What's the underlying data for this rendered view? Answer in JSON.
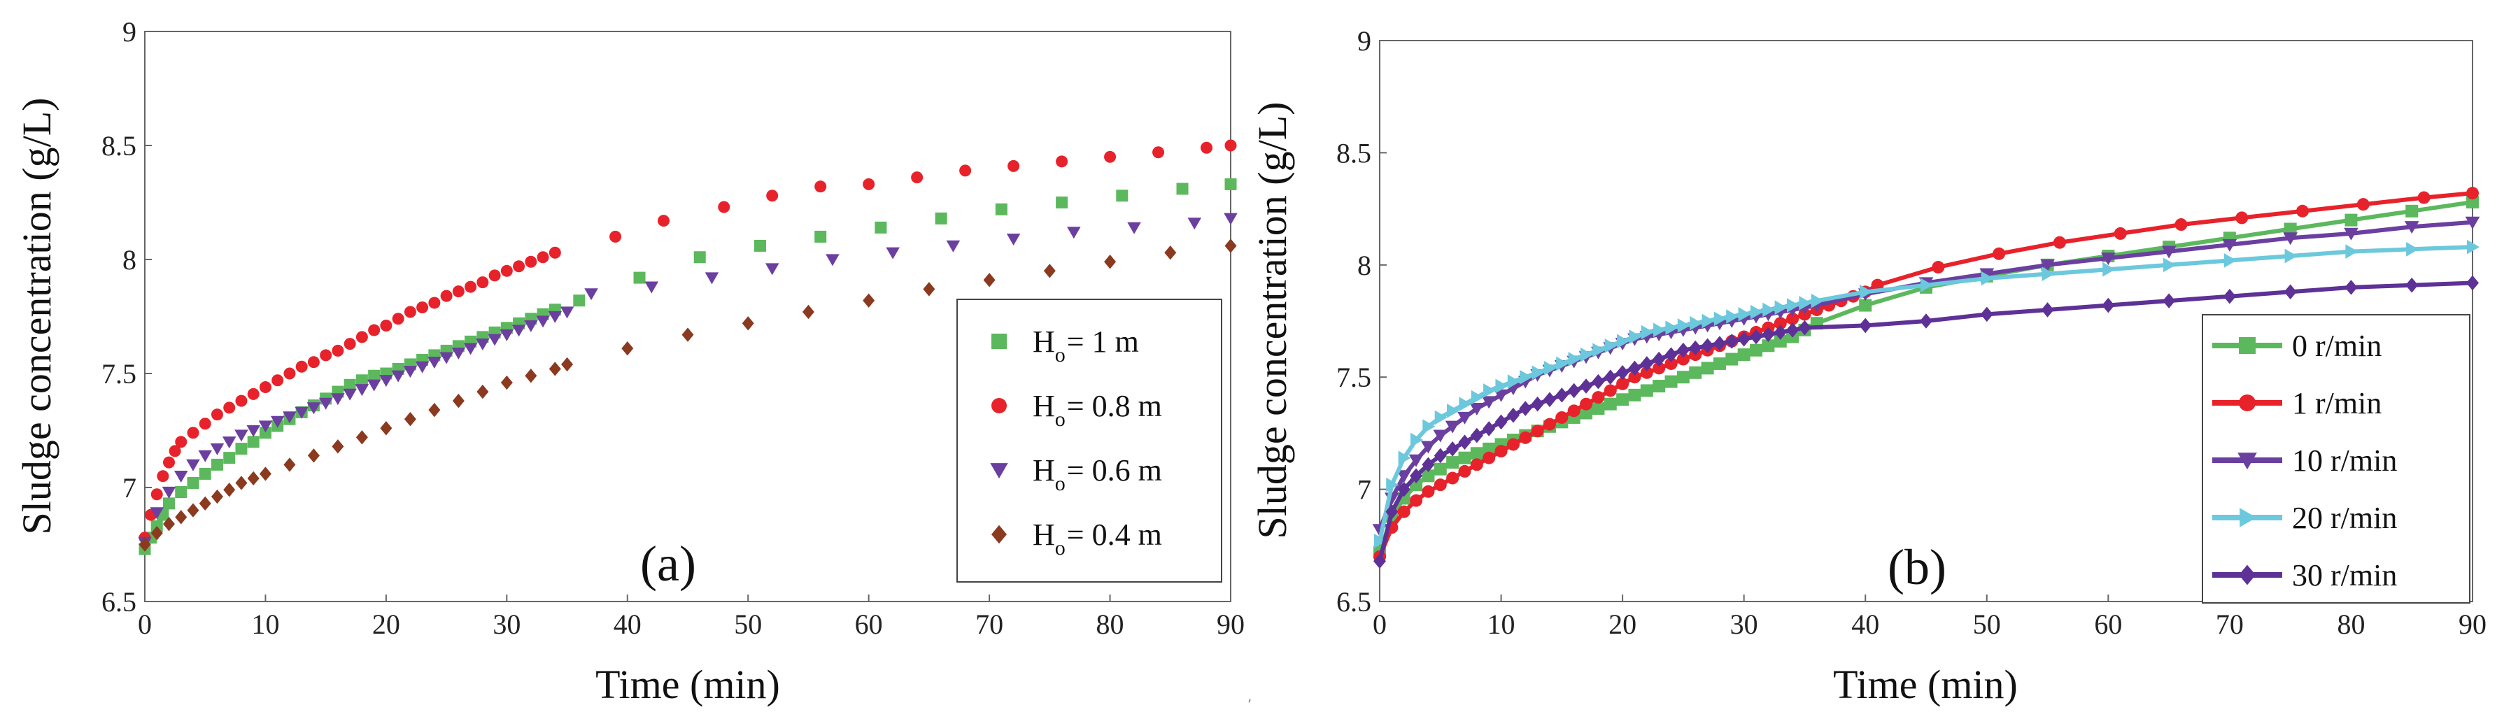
{
  "chart_data": [
    {
      "type": "scatter",
      "panel": "(a)",
      "xlabel": "Time (min)",
      "ylabel": "Sludge concentration (g/L)",
      "xlim": [
        0,
        90
      ],
      "ylim": [
        6.5,
        9
      ],
      "xticks": [
        "0",
        "10",
        "20",
        "30",
        "40",
        "50",
        "60",
        "70",
        "80",
        "90"
      ],
      "yticks": [
        "6.5",
        "7",
        "7.5",
        "8",
        "8.5",
        "9"
      ],
      "legend_position": "right",
      "series": [
        {
          "name": "H",
          "sub": "o",
          "label_tail": "= 1 m",
          "color": "#5cb85c",
          "marker": "square",
          "x": [
            0,
            0.5,
            1,
            1.5,
            2,
            3,
            4,
            5,
            6,
            7,
            8,
            9,
            10,
            11,
            12,
            13,
            14,
            15,
            16,
            17,
            18,
            19,
            20,
            21,
            22,
            23,
            24,
            25,
            26,
            27,
            28,
            29,
            30,
            31,
            32,
            33,
            34,
            36,
            41,
            46,
            51,
            56,
            61,
            66,
            71,
            76,
            81,
            86,
            90
          ],
          "y": [
            6.73,
            6.78,
            6.83,
            6.88,
            6.93,
            6.98,
            7.02,
            7.06,
            7.1,
            7.13,
            7.17,
            7.2,
            7.24,
            7.27,
            7.3,
            7.33,
            7.36,
            7.39,
            7.42,
            7.45,
            7.47,
            7.49,
            7.5,
            7.52,
            7.54,
            7.56,
            7.58,
            7.6,
            7.62,
            7.64,
            7.66,
            7.68,
            7.7,
            7.72,
            7.74,
            7.76,
            7.78,
            7.82,
            7.92,
            8.01,
            8.06,
            8.1,
            8.14,
            8.18,
            8.22,
            8.25,
            8.28,
            8.31,
            8.33
          ]
        },
        {
          "name": "H",
          "sub": "o",
          "label_tail": "= 0.8 m",
          "color": "#e8222a",
          "marker": "circle",
          "x": [
            0,
            0.5,
            1,
            1.5,
            2,
            2.5,
            3,
            4,
            5,
            6,
            7,
            8,
            9,
            10,
            11,
            12,
            13,
            14,
            15,
            16,
            17,
            18,
            19,
            20,
            21,
            22,
            23,
            24,
            25,
            26,
            27,
            28,
            29,
            30,
            31,
            32,
            33,
            34,
            39,
            43,
            48,
            52,
            56,
            60,
            64,
            68,
            72,
            76,
            80,
            84,
            88,
            90
          ],
          "y": [
            6.78,
            6.88,
            6.97,
            7.05,
            7.11,
            7.16,
            7.2,
            7.24,
            7.28,
            7.32,
            7.35,
            7.38,
            7.41,
            7.44,
            7.47,
            7.5,
            7.53,
            7.55,
            7.58,
            7.6,
            7.63,
            7.66,
            7.69,
            7.71,
            7.74,
            7.77,
            7.79,
            7.81,
            7.84,
            7.86,
            7.88,
            7.9,
            7.93,
            7.95,
            7.97,
            7.99,
            8.01,
            8.03,
            8.1,
            8.17,
            8.23,
            8.28,
            8.32,
            8.33,
            8.36,
            8.39,
            8.41,
            8.43,
            8.45,
            8.47,
            8.49,
            8.5
          ]
        },
        {
          "name": "H",
          "sub": "o",
          "label_tail": "= 0.6 m",
          "color": "#6b3fa0",
          "marker": "triangle-down",
          "x": [
            0,
            1,
            2,
            3,
            4,
            5,
            6,
            7,
            8,
            9,
            10,
            11,
            12,
            13,
            14,
            15,
            16,
            17,
            18,
            19,
            20,
            21,
            22,
            23,
            24,
            25,
            26,
            27,
            28,
            29,
            30,
            31,
            32,
            33,
            34,
            35,
            37,
            42,
            47,
            52,
            57,
            62,
            67,
            72,
            77,
            82,
            87,
            90
          ],
          "y": [
            6.76,
            6.89,
            6.98,
            7.05,
            7.1,
            7.14,
            7.17,
            7.2,
            7.23,
            7.25,
            7.27,
            7.29,
            7.31,
            7.33,
            7.35,
            7.37,
            7.39,
            7.41,
            7.43,
            7.45,
            7.47,
            7.49,
            7.51,
            7.53,
            7.55,
            7.57,
            7.59,
            7.61,
            7.63,
            7.65,
            7.67,
            7.69,
            7.71,
            7.73,
            7.75,
            7.77,
            7.85,
            7.88,
            7.92,
            7.96,
            8.0,
            8.03,
            8.06,
            8.09,
            8.12,
            8.14,
            8.16,
            8.18
          ]
        },
        {
          "name": "H",
          "sub": "o",
          "label_tail": "= 0.4 m",
          "color": "#8b3a1f",
          "marker": "diamond",
          "x": [
            0,
            1,
            2,
            3,
            4,
            5,
            6,
            7,
            8,
            9,
            10,
            12,
            14,
            16,
            18,
            20,
            22,
            24,
            26,
            28,
            30,
            32,
            34,
            35,
            40,
            45,
            50,
            55,
            60,
            65,
            70,
            75,
            80,
            85,
            90
          ],
          "y": [
            6.75,
            6.8,
            6.84,
            6.87,
            6.9,
            6.93,
            6.96,
            6.99,
            7.02,
            7.04,
            7.06,
            7.1,
            7.14,
            7.18,
            7.22,
            7.26,
            7.3,
            7.34,
            7.38,
            7.42,
            7.46,
            7.49,
            7.52,
            7.54,
            7.61,
            7.67,
            7.72,
            7.77,
            7.82,
            7.87,
            7.91,
            7.95,
            7.99,
            8.03,
            8.06
          ]
        }
      ]
    },
    {
      "type": "line",
      "panel": "(b)",
      "xlabel": "Time (min)",
      "ylabel": "Sludge concentration (g/L)",
      "xlim": [
        0,
        90
      ],
      "ylim": [
        6.5,
        9
      ],
      "xticks": [
        "0",
        "10",
        "20",
        "30",
        "40",
        "50",
        "60",
        "70",
        "80",
        "90"
      ],
      "yticks": [
        "6.5",
        "7",
        "7.5",
        "8",
        "8.5",
        "9"
      ],
      "legend_position": "bottom-right",
      "series": [
        {
          "name": "0 r/min",
          "color": "#5cb85c",
          "marker": "square",
          "x": [
            0,
            1,
            2,
            3,
            4,
            5,
            6,
            7,
            8,
            9,
            10,
            11,
            12,
            13,
            14,
            15,
            16,
            17,
            18,
            19,
            20,
            21,
            22,
            23,
            24,
            25,
            26,
            27,
            28,
            29,
            30,
            31,
            32,
            33,
            34,
            35,
            36,
            40,
            45,
            50,
            55,
            60,
            65,
            70,
            75,
            80,
            85,
            90
          ],
          "y": [
            6.72,
            6.88,
            6.96,
            7.02,
            7.06,
            7.09,
            7.12,
            7.14,
            7.16,
            7.18,
            7.2,
            7.22,
            7.24,
            7.26,
            7.28,
            7.3,
            7.32,
            7.34,
            7.36,
            7.38,
            7.4,
            7.42,
            7.44,
            7.46,
            7.48,
            7.5,
            7.52,
            7.54,
            7.56,
            7.58,
            7.6,
            7.62,
            7.64,
            7.66,
            7.68,
            7.71,
            7.74,
            7.82,
            7.9,
            7.95,
            8.0,
            8.04,
            8.08,
            8.12,
            8.16,
            8.2,
            8.24,
            8.28
          ]
        },
        {
          "name": "1 r/min",
          "color": "#e8222a",
          "marker": "circle",
          "x": [
            0,
            1,
            2,
            3,
            4,
            5,
            6,
            7,
            8,
            9,
            10,
            11,
            12,
            13,
            14,
            15,
            16,
            17,
            18,
            19,
            20,
            21,
            22,
            23,
            24,
            25,
            26,
            27,
            28,
            29,
            30,
            31,
            32,
            33,
            34,
            35,
            36,
            37,
            38,
            39,
            40,
            41,
            46,
            51,
            56,
            61,
            66,
            71,
            76,
            81,
            86,
            90
          ],
          "y": [
            6.7,
            6.83,
            6.9,
            6.95,
            6.99,
            7.02,
            7.05,
            7.08,
            7.11,
            7.14,
            7.17,
            7.2,
            7.23,
            7.26,
            7.29,
            7.32,
            7.35,
            7.38,
            7.41,
            7.44,
            7.47,
            7.5,
            7.52,
            7.54,
            7.56,
            7.58,
            7.6,
            7.62,
            7.64,
            7.66,
            7.68,
            7.7,
            7.72,
            7.74,
            7.76,
            7.78,
            7.8,
            7.82,
            7.84,
            7.86,
            7.88,
            7.91,
            7.99,
            8.05,
            8.1,
            8.14,
            8.18,
            8.21,
            8.24,
            8.27,
            8.3,
            8.32
          ]
        },
        {
          "name": "10 r/min",
          "color": "#6b3fa0",
          "marker": "triangle-down",
          "x": [
            0,
            1,
            2,
            3,
            4,
            5,
            6,
            7,
            8,
            9,
            10,
            11,
            12,
            13,
            14,
            15,
            16,
            17,
            18,
            19,
            20,
            21,
            22,
            23,
            24,
            25,
            26,
            27,
            28,
            29,
            30,
            31,
            32,
            33,
            34,
            35,
            36,
            40,
            45,
            50,
            55,
            60,
            65,
            70,
            75,
            80,
            85,
            90
          ],
          "y": [
            6.82,
            6.96,
            7.06,
            7.13,
            7.19,
            7.24,
            7.28,
            7.32,
            7.36,
            7.39,
            7.42,
            7.45,
            7.48,
            7.51,
            7.53,
            7.55,
            7.57,
            7.59,
            7.61,
            7.63,
            7.65,
            7.67,
            7.68,
            7.69,
            7.7,
            7.71,
            7.72,
            7.73,
            7.74,
            7.75,
            7.76,
            7.77,
            7.78,
            7.79,
            7.8,
            7.81,
            7.82,
            7.87,
            7.92,
            7.96,
            8.0,
            8.03,
            8.06,
            8.09,
            8.12,
            8.14,
            8.17,
            8.19
          ]
        },
        {
          "name": "20 r/min",
          "color": "#6cc8dc",
          "marker": "triangle-right",
          "x": [
            0,
            1,
            2,
            3,
            4,
            5,
            6,
            7,
            8,
            9,
            10,
            11,
            12,
            13,
            14,
            15,
            16,
            17,
            18,
            19,
            20,
            21,
            22,
            23,
            24,
            25,
            26,
            27,
            28,
            29,
            30,
            31,
            32,
            33,
            34,
            35,
            36,
            40,
            45,
            50,
            55,
            60,
            65,
            70,
            75,
            80,
            85,
            90
          ],
          "y": [
            6.77,
            7.02,
            7.14,
            7.22,
            7.28,
            7.32,
            7.35,
            7.38,
            7.41,
            7.44,
            7.46,
            7.48,
            7.5,
            7.52,
            7.54,
            7.56,
            7.58,
            7.6,
            7.62,
            7.64,
            7.66,
            7.68,
            7.7,
            7.71,
            7.72,
            7.73,
            7.74,
            7.75,
            7.76,
            7.77,
            7.78,
            7.79,
            7.8,
            7.81,
            7.82,
            7.83,
            7.84,
            7.88,
            7.91,
            7.94,
            7.96,
            7.98,
            8.0,
            8.02,
            8.04,
            8.06,
            8.07,
            8.08
          ]
        },
        {
          "name": "30 r/min",
          "color": "#5e3196",
          "marker": "diamond",
          "x": [
            0,
            1,
            2,
            3,
            4,
            5,
            6,
            7,
            8,
            9,
            10,
            11,
            12,
            13,
            14,
            15,
            16,
            17,
            18,
            19,
            20,
            21,
            22,
            23,
            24,
            25,
            26,
            27,
            28,
            29,
            30,
            31,
            32,
            33,
            34,
            35,
            40,
            45,
            50,
            55,
            60,
            65,
            70,
            75,
            80,
            85,
            90
          ],
          "y": [
            6.68,
            6.9,
            7.0,
            7.06,
            7.11,
            7.15,
            7.18,
            7.21,
            7.24,
            7.27,
            7.3,
            7.33,
            7.36,
            7.38,
            7.4,
            7.42,
            7.44,
            7.46,
            7.48,
            7.5,
            7.52,
            7.54,
            7.56,
            7.58,
            7.6,
            7.62,
            7.63,
            7.64,
            7.65,
            7.66,
            7.67,
            7.68,
            7.69,
            7.7,
            7.71,
            7.72,
            7.73,
            7.75,
            7.78,
            7.8,
            7.82,
            7.84,
            7.86,
            7.88,
            7.9,
            7.91,
            7.92
          ]
        }
      ]
    }
  ]
}
